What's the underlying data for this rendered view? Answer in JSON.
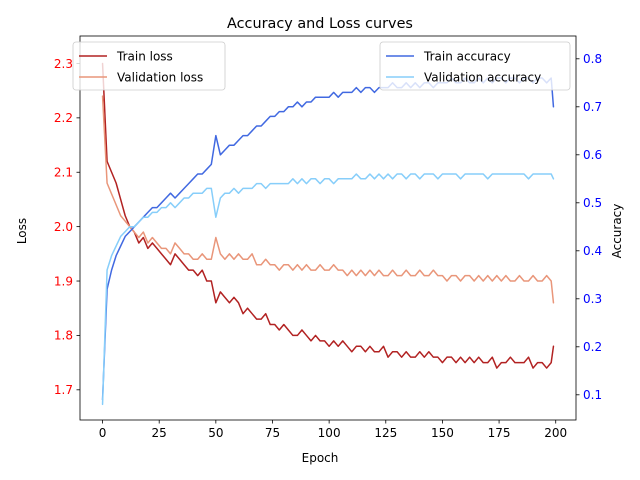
{
  "chart_data": {
    "type": "line",
    "title": "Accuracy and Loss curves",
    "xlabel": "Epoch",
    "ylabel_left": "Loss",
    "ylabel_right": "Accuracy",
    "xlim": [
      -9.95,
      208.95
    ],
    "ylim_left": [
      1.6445,
      2.3505
    ],
    "ylim_right": [
      0.0475,
      0.8475
    ],
    "x_ticks": [
      0,
      25,
      50,
      75,
      100,
      125,
      150,
      175,
      200
    ],
    "y_ticks_left": [
      1.7,
      1.8,
      1.9,
      2.0,
      2.1,
      2.2,
      2.3
    ],
    "y_ticks_right": [
      0.1,
      0.2,
      0.3,
      0.4,
      0.5,
      0.6,
      0.7,
      0.8
    ],
    "left_tick_color": "#ff0000",
    "right_tick_color": "#0000ff",
    "grid": false,
    "legend_left": {
      "placement": "upper-left",
      "entries": [
        "Train loss",
        "Validation loss"
      ]
    },
    "legend_right": {
      "placement": "upper-right",
      "entries": [
        "Train accuracy",
        "Validation accuracy"
      ]
    },
    "series": [
      {
        "name": "Train loss",
        "axis": "left",
        "color": "#b22222",
        "x": [
          0,
          2,
          4,
          6,
          8,
          10,
          12,
          14,
          16,
          18,
          20,
          22,
          24,
          26,
          28,
          30,
          32,
          34,
          36,
          38,
          40,
          42,
          44,
          46,
          48,
          50,
          52,
          54,
          56,
          58,
          60,
          62,
          64,
          66,
          68,
          70,
          72,
          74,
          76,
          78,
          80,
          82,
          84,
          86,
          88,
          90,
          92,
          94,
          96,
          98,
          100,
          102,
          104,
          106,
          108,
          110,
          112,
          114,
          116,
          118,
          120,
          122,
          124,
          126,
          128,
          130,
          132,
          134,
          136,
          138,
          140,
          142,
          144,
          146,
          148,
          150,
          152,
          154,
          156,
          158,
          160,
          162,
          164,
          166,
          168,
          170,
          172,
          174,
          176,
          178,
          180,
          182,
          184,
          186,
          188,
          190,
          192,
          194,
          196,
          198,
          199
        ],
        "y": [
          2.3,
          2.12,
          2.1,
          2.08,
          2.05,
          2.02,
          2.0,
          1.99,
          1.97,
          1.98,
          1.96,
          1.97,
          1.96,
          1.95,
          1.94,
          1.93,
          1.95,
          1.94,
          1.93,
          1.92,
          1.92,
          1.91,
          1.92,
          1.9,
          1.9,
          1.86,
          1.88,
          1.87,
          1.86,
          1.87,
          1.86,
          1.84,
          1.85,
          1.84,
          1.83,
          1.83,
          1.84,
          1.82,
          1.82,
          1.81,
          1.82,
          1.81,
          1.8,
          1.8,
          1.81,
          1.8,
          1.79,
          1.8,
          1.79,
          1.79,
          1.78,
          1.79,
          1.78,
          1.79,
          1.78,
          1.77,
          1.78,
          1.78,
          1.77,
          1.78,
          1.77,
          1.77,
          1.78,
          1.76,
          1.77,
          1.77,
          1.76,
          1.77,
          1.76,
          1.76,
          1.77,
          1.76,
          1.77,
          1.76,
          1.76,
          1.75,
          1.76,
          1.76,
          1.75,
          1.76,
          1.75,
          1.76,
          1.75,
          1.76,
          1.75,
          1.75,
          1.76,
          1.74,
          1.75,
          1.75,
          1.76,
          1.75,
          1.75,
          1.75,
          1.76,
          1.74,
          1.75,
          1.75,
          1.74,
          1.75,
          1.78
        ]
      },
      {
        "name": "Validation loss",
        "axis": "left",
        "color": "#e9967a",
        "x": [
          0,
          2,
          4,
          6,
          8,
          10,
          12,
          14,
          16,
          18,
          20,
          22,
          24,
          26,
          28,
          30,
          32,
          34,
          36,
          38,
          40,
          42,
          44,
          46,
          48,
          50,
          52,
          54,
          56,
          58,
          60,
          62,
          64,
          66,
          68,
          70,
          72,
          74,
          76,
          78,
          80,
          82,
          84,
          86,
          88,
          90,
          92,
          94,
          96,
          98,
          100,
          102,
          104,
          106,
          108,
          110,
          112,
          114,
          116,
          118,
          120,
          122,
          124,
          126,
          128,
          130,
          132,
          134,
          136,
          138,
          140,
          142,
          144,
          146,
          148,
          150,
          152,
          154,
          156,
          158,
          160,
          162,
          164,
          166,
          168,
          170,
          172,
          174,
          176,
          178,
          180,
          182,
          184,
          186,
          188,
          190,
          192,
          194,
          196,
          198,
          199
        ],
        "y": [
          2.24,
          2.08,
          2.06,
          2.04,
          2.02,
          2.01,
          2.0,
          1.99,
          1.98,
          1.99,
          1.97,
          1.98,
          1.97,
          1.96,
          1.96,
          1.95,
          1.97,
          1.96,
          1.95,
          1.95,
          1.94,
          1.94,
          1.95,
          1.94,
          1.94,
          1.98,
          1.95,
          1.94,
          1.95,
          1.94,
          1.95,
          1.94,
          1.94,
          1.95,
          1.93,
          1.93,
          1.94,
          1.93,
          1.93,
          1.92,
          1.93,
          1.93,
          1.92,
          1.93,
          1.92,
          1.93,
          1.92,
          1.92,
          1.93,
          1.92,
          1.92,
          1.93,
          1.92,
          1.92,
          1.91,
          1.92,
          1.91,
          1.92,
          1.91,
          1.92,
          1.91,
          1.92,
          1.91,
          1.91,
          1.92,
          1.91,
          1.91,
          1.92,
          1.91,
          1.91,
          1.92,
          1.91,
          1.91,
          1.92,
          1.91,
          1.91,
          1.9,
          1.91,
          1.91,
          1.9,
          1.91,
          1.91,
          1.9,
          1.91,
          1.9,
          1.91,
          1.9,
          1.91,
          1.9,
          1.91,
          1.9,
          1.9,
          1.91,
          1.9,
          1.9,
          1.91,
          1.9,
          1.9,
          1.91,
          1.9,
          1.86
        ]
      },
      {
        "name": "Train accuracy",
        "axis": "right",
        "color": "#4169e1",
        "x": [
          0,
          2,
          4,
          6,
          8,
          10,
          12,
          14,
          16,
          18,
          20,
          22,
          24,
          26,
          28,
          30,
          32,
          34,
          36,
          38,
          40,
          42,
          44,
          46,
          48,
          50,
          52,
          54,
          56,
          58,
          60,
          62,
          64,
          66,
          68,
          70,
          72,
          74,
          76,
          78,
          80,
          82,
          84,
          86,
          88,
          90,
          92,
          94,
          96,
          98,
          100,
          102,
          104,
          106,
          108,
          110,
          112,
          114,
          116,
          118,
          120,
          122,
          124,
          126,
          128,
          130,
          132,
          134,
          136,
          138,
          140,
          142,
          144,
          146,
          148,
          150,
          152,
          154,
          156,
          158,
          160,
          162,
          164,
          166,
          168,
          170,
          172,
          174,
          176,
          178,
          180,
          182,
          184,
          186,
          188,
          190,
          192,
          194,
          196,
          198,
          199
        ],
        "y": [
          0.09,
          0.32,
          0.36,
          0.39,
          0.41,
          0.43,
          0.44,
          0.45,
          0.46,
          0.47,
          0.48,
          0.49,
          0.49,
          0.5,
          0.51,
          0.52,
          0.51,
          0.52,
          0.53,
          0.54,
          0.55,
          0.56,
          0.56,
          0.57,
          0.58,
          0.64,
          0.6,
          0.61,
          0.62,
          0.62,
          0.63,
          0.64,
          0.64,
          0.65,
          0.66,
          0.66,
          0.67,
          0.68,
          0.68,
          0.69,
          0.69,
          0.7,
          0.7,
          0.71,
          0.7,
          0.71,
          0.71,
          0.72,
          0.72,
          0.72,
          0.72,
          0.73,
          0.72,
          0.73,
          0.73,
          0.73,
          0.74,
          0.73,
          0.74,
          0.74,
          0.73,
          0.74,
          0.74,
          0.74,
          0.75,
          0.74,
          0.74,
          0.75,
          0.74,
          0.75,
          0.74,
          0.75,
          0.75,
          0.74,
          0.75,
          0.75,
          0.75,
          0.76,
          0.75,
          0.75,
          0.76,
          0.75,
          0.75,
          0.76,
          0.75,
          0.76,
          0.75,
          0.76,
          0.76,
          0.75,
          0.76,
          0.76,
          0.75,
          0.76,
          0.76,
          0.75,
          0.76,
          0.76,
          0.75,
          0.76,
          0.7
        ]
      },
      {
        "name": "Validation accuracy",
        "axis": "right",
        "color": "#87cefa",
        "x": [
          0,
          2,
          4,
          6,
          8,
          10,
          12,
          14,
          16,
          18,
          20,
          22,
          24,
          26,
          28,
          30,
          32,
          34,
          36,
          38,
          40,
          42,
          44,
          46,
          48,
          50,
          52,
          54,
          56,
          58,
          60,
          62,
          64,
          66,
          68,
          70,
          72,
          74,
          76,
          78,
          80,
          82,
          84,
          86,
          88,
          90,
          92,
          94,
          96,
          98,
          100,
          102,
          104,
          106,
          108,
          110,
          112,
          114,
          116,
          118,
          120,
          122,
          124,
          126,
          128,
          130,
          132,
          134,
          136,
          138,
          140,
          142,
          144,
          146,
          148,
          150,
          152,
          154,
          156,
          158,
          160,
          162,
          164,
          166,
          168,
          170,
          172,
          174,
          176,
          178,
          180,
          182,
          184,
          186,
          188,
          190,
          192,
          194,
          196,
          198,
          199
        ],
        "y": [
          0.08,
          0.36,
          0.39,
          0.41,
          0.43,
          0.44,
          0.45,
          0.45,
          0.46,
          0.47,
          0.47,
          0.48,
          0.48,
          0.49,
          0.49,
          0.5,
          0.49,
          0.5,
          0.51,
          0.51,
          0.52,
          0.52,
          0.52,
          0.53,
          0.53,
          0.47,
          0.51,
          0.52,
          0.52,
          0.53,
          0.52,
          0.53,
          0.53,
          0.53,
          0.54,
          0.54,
          0.53,
          0.54,
          0.54,
          0.54,
          0.54,
          0.54,
          0.55,
          0.54,
          0.55,
          0.54,
          0.55,
          0.55,
          0.54,
          0.55,
          0.55,
          0.54,
          0.55,
          0.55,
          0.55,
          0.55,
          0.56,
          0.55,
          0.55,
          0.56,
          0.55,
          0.56,
          0.55,
          0.56,
          0.55,
          0.56,
          0.56,
          0.55,
          0.56,
          0.56,
          0.55,
          0.56,
          0.56,
          0.56,
          0.55,
          0.56,
          0.56,
          0.56,
          0.56,
          0.55,
          0.56,
          0.56,
          0.56,
          0.56,
          0.56,
          0.55,
          0.56,
          0.56,
          0.56,
          0.56,
          0.56,
          0.56,
          0.56,
          0.56,
          0.55,
          0.56,
          0.56,
          0.56,
          0.56,
          0.56,
          0.55
        ]
      }
    ]
  }
}
